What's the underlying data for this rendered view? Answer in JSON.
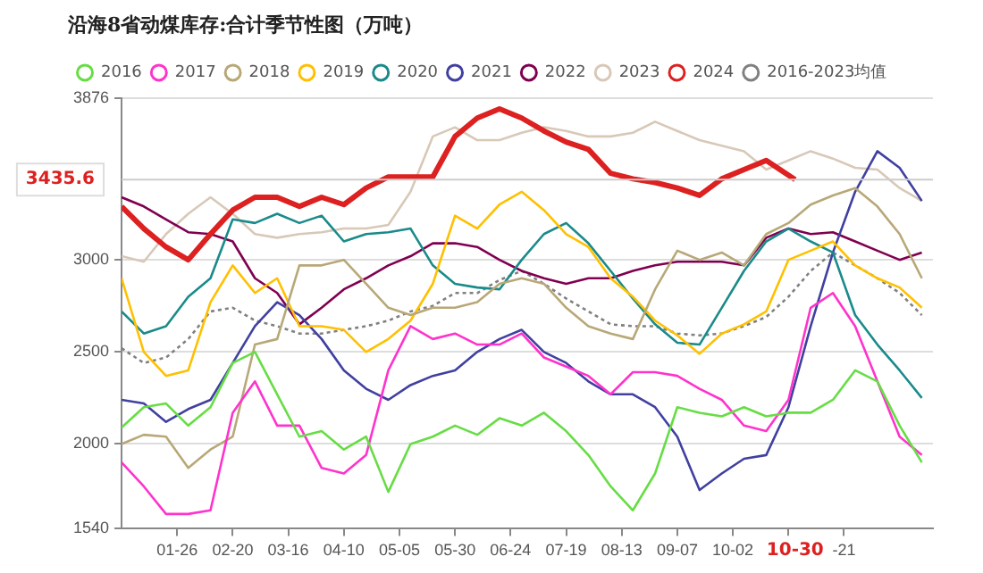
{
  "chart_data": {
    "type": "line",
    "title": "沿海8省动煤库存:合计季节性图（万吨）",
    "x": [
      "--01-01",
      "--01-11",
      "--01-21",
      "--01-31",
      "--02-10",
      "--02-20",
      "--03-01",
      "--03-11",
      "--03-21",
      "--03-31",
      "--04-10",
      "--04-20",
      "--04-30",
      "--05-10",
      "--05-20",
      "--05-30",
      "--06-09",
      "--06-19",
      "--06-29",
      "--07-09",
      "--07-19",
      "--07-29",
      "--08-08",
      "--08-18",
      "--08-28",
      "--09-07",
      "--09-17",
      "--09-27",
      "--10-07",
      "--10-17",
      "--10-27",
      "--11-06",
      "--11-16",
      "--11-26",
      "--12-06",
      "--12-16",
      "--12-26"
    ],
    "xlim": [
      "--01-01",
      "--12-31"
    ],
    "xticks": [
      {
        "value": "--01-26",
        "label": "01-26"
      },
      {
        "value": "--02-20",
        "label": "02-20"
      },
      {
        "value": "--03-16",
        "label": "03-16"
      },
      {
        "value": "--04-10",
        "label": "04-10"
      },
      {
        "value": "--05-05",
        "label": "05-05"
      },
      {
        "value": "--05-30",
        "label": "05-30"
      },
      {
        "value": "--06-24",
        "label": "06-24"
      },
      {
        "value": "--07-19",
        "label": "07-19"
      },
      {
        "value": "--08-13",
        "label": "08-13"
      },
      {
        "value": "--09-07",
        "label": "09-07"
      },
      {
        "value": "--10-02",
        "label": "10-02"
      },
      {
        "value": "--10-27",
        "label": null
      },
      {
        "value": "--11-21",
        "label": "-21"
      }
    ],
    "ylim": [
      1540,
      3876
    ],
    "yticks": [
      1540,
      2000,
      2500,
      3000,
      3876
    ],
    "grid": "y",
    "legend": "top",
    "series": [
      {
        "name": "2016",
        "color": "#66dd44",
        "values": [
          2090,
          2200,
          2220,
          2100,
          2200,
          2440,
          2500,
          2270,
          2040,
          2070,
          1970,
          2040,
          1740,
          2000,
          2040,
          2100,
          2050,
          2140,
          2100,
          2170,
          2070,
          1940,
          1770,
          1640,
          1840,
          2200,
          2170,
          2150,
          2200,
          2150,
          2170,
          2170,
          2240,
          2400,
          2340,
          2100,
          1900
        ]
      },
      {
        "name": "2017",
        "color": "#ff33cc",
        "values": [
          1900,
          1770,
          1620,
          1620,
          1640,
          2170,
          2340,
          2100,
          2100,
          1870,
          1840,
          1940,
          2400,
          2640,
          2570,
          2600,
          2540,
          2540,
          2600,
          2470,
          2420,
          2370,
          2270,
          2390,
          2390,
          2370,
          2300,
          2240,
          2100,
          2070,
          2240,
          2740,
          2820,
          2640,
          2340,
          2040,
          1940
        ]
      },
      {
        "name": "2018",
        "color": "#b8a878",
        "values": [
          2000,
          2050,
          2040,
          1870,
          1970,
          2040,
          2540,
          2570,
          2970,
          2970,
          3000,
          2870,
          2740,
          2700,
          2740,
          2740,
          2770,
          2870,
          2900,
          2870,
          2740,
          2640,
          2600,
          2570,
          2840,
          3050,
          3000,
          3040,
          2970,
          3140,
          3200,
          3300,
          3350,
          3390,
          3290,
          3140,
          2900
        ]
      },
      {
        "name": "2019",
        "color": "#ffc000",
        "values": [
          2900,
          2500,
          2370,
          2400,
          2770,
          2970,
          2820,
          2900,
          2640,
          2640,
          2620,
          2500,
          2570,
          2670,
          2870,
          3240,
          3170,
          3300,
          3370,
          3270,
          3140,
          3070,
          2900,
          2800,
          2670,
          2590,
          2490,
          2600,
          2650,
          2720,
          3000,
          3050,
          3100,
          2970,
          2900,
          2850,
          2740
        ]
      },
      {
        "name": "2020",
        "color": "#1a8a8a",
        "values": [
          2720,
          2600,
          2640,
          2800,
          2900,
          3220,
          3200,
          3250,
          3200,
          3240,
          3100,
          3140,
          3150,
          3170,
          2970,
          2870,
          2850,
          2840,
          3000,
          3140,
          3200,
          3090,
          2940,
          2790,
          2650,
          2550,
          2540,
          2740,
          2940,
          3100,
          3170,
          3100,
          3040,
          2700,
          2540,
          2400,
          2250
        ]
      },
      {
        "name": "2021",
        "color": "#4040a0",
        "values": [
          2240,
          2220,
          2120,
          2190,
          2240,
          2440,
          2640,
          2770,
          2700,
          2570,
          2400,
          2300,
          2240,
          2320,
          2370,
          2400,
          2500,
          2570,
          2620,
          2500,
          2440,
          2340,
          2270,
          2270,
          2200,
          2040,
          1750,
          1840,
          1920,
          1940,
          2200,
          2640,
          3040,
          3370,
          3590,
          3500,
          3320
        ]
      },
      {
        "name": "2022",
        "color": "#800050",
        "values": [
          3340,
          3290,
          3220,
          3150,
          3140,
          3100,
          2900,
          2820,
          2650,
          2740,
          2840,
          2900,
          2970,
          3020,
          3090,
          3090,
          3070,
          3000,
          2940,
          2900,
          2870,
          2900,
          2900,
          2940,
          2970,
          2990,
          2990,
          2990,
          2970,
          3120,
          3170,
          3140,
          3150,
          3100,
          3050,
          3000,
          3040
        ]
      },
      {
        "name": "2023",
        "color": "#d8c8b8",
        "values": [
          3020,
          2990,
          3140,
          3250,
          3340,
          3250,
          3140,
          3120,
          3140,
          3150,
          3170,
          3170,
          3190,
          3370,
          3670,
          3720,
          3650,
          3650,
          3690,
          3720,
          3700,
          3670,
          3670,
          3690,
          3750,
          3700,
          3650,
          3620,
          3590,
          3490,
          3540,
          3590,
          3550,
          3500,
          3490,
          3390,
          3320
        ]
      },
      {
        "name": "2024",
        "color": "#dd2020",
        "x": [
          "--01-01",
          "--01-11",
          "--01-21",
          "--01-31",
          "--02-10",
          "--02-20",
          "--03-01",
          "--03-11",
          "--03-21",
          "--03-31",
          "--04-10",
          "--04-20",
          "--04-30",
          "--05-10",
          "--05-20",
          "--05-30",
          "--06-09",
          "--06-19",
          "--06-29",
          "--07-09",
          "--07-19",
          "--07-29",
          "--08-08",
          "--08-18",
          "--08-28",
          "--09-07",
          "--09-17",
          "--09-27",
          "--10-07",
          "--10-17",
          "--10-30"
        ],
        "values": [
          3290,
          3170,
          3070,
          3000,
          3140,
          3270,
          3340,
          3340,
          3290,
          3340,
          3300,
          3390,
          3450,
          3450,
          3450,
          3670,
          3770,
          3820,
          3770,
          3700,
          3640,
          3600,
          3470,
          3440,
          3420,
          3390,
          3350,
          3440,
          3490,
          3540,
          3435.6
        ]
      },
      {
        "name": "2016-2023均值",
        "color": "#808080",
        "line_style": "dotted",
        "values": [
          2520,
          2440,
          2470,
          2570,
          2720,
          2740,
          2670,
          2640,
          2600,
          2600,
          2620,
          2640,
          2670,
          2720,
          2750,
          2820,
          2820,
          2890,
          2940,
          2870,
          2790,
          2720,
          2650,
          2640,
          2640,
          2600,
          2590,
          2600,
          2640,
          2690,
          2800,
          2940,
          3040,
          2970,
          2900,
          2820,
          2700
        ]
      }
    ],
    "ref_lines": [
      {
        "axis": "y",
        "value": 3435.6,
        "label": "3435.6"
      }
    ],
    "annotations": [
      "10-30"
    ]
  }
}
